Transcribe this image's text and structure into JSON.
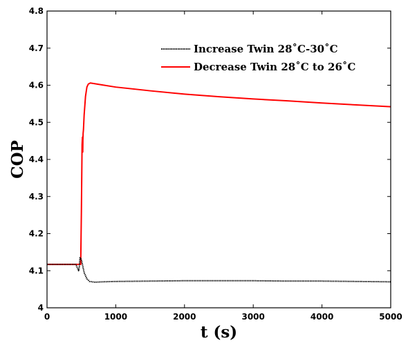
{
  "chart_data": {
    "type": "line",
    "title": "",
    "xlabel": "t (s)",
    "ylabel": "COP",
    "xlim": [
      0,
      5000
    ],
    "ylim": [
      4.0,
      4.8
    ],
    "xticks": [
      0,
      1000,
      2000,
      3000,
      4000,
      5000
    ],
    "xtick_labels": [
      "0",
      "1000",
      "2000",
      "3000",
      "4000",
      "5000"
    ],
    "yticks": [
      4.0,
      4.1,
      4.2,
      4.3,
      4.4,
      4.5,
      4.6,
      4.7,
      4.8
    ],
    "ytick_labels": [
      "4",
      "4.1",
      "4.2",
      "4.3",
      "4.4",
      "4.5",
      "4.6",
      "4.7",
      "4.8"
    ],
    "grid": false,
    "legend_position": "top-right",
    "series": [
      {
        "name": "Increase Twin 28˚C-30˚C",
        "color": "#000000",
        "style": "dotted",
        "x": [
          0,
          300,
          420,
          440,
          460,
          470,
          480,
          500,
          540,
          580,
          620,
          700,
          800,
          1000,
          1500,
          2000,
          2500,
          3000,
          3500,
          4000,
          4500,
          5000
        ],
        "y": [
          4.117,
          4.117,
          4.117,
          4.108,
          4.1,
          4.11,
          4.135,
          4.13,
          4.095,
          4.078,
          4.071,
          4.069,
          4.07,
          4.071,
          4.072,
          4.073,
          4.073,
          4.073,
          4.072,
          4.072,
          4.071,
          4.07
        ]
      },
      {
        "name": "Decrease Twin 28˚C to 26˚C",
        "color": "#ff0000",
        "style": "solid",
        "x": [
          0,
          300,
          490,
          500,
          510,
          515,
          520,
          522,
          525,
          530,
          540,
          560,
          580,
          600,
          630,
          700,
          800,
          1000,
          1500,
          2000,
          2500,
          3000,
          3500,
          4000,
          4500,
          5000
        ],
        "y": [
          4.117,
          4.117,
          4.117,
          4.26,
          4.44,
          4.46,
          4.42,
          4.45,
          4.47,
          4.48,
          4.52,
          4.57,
          4.595,
          4.603,
          4.606,
          4.604,
          4.601,
          4.595,
          4.585,
          4.576,
          4.569,
          4.563,
          4.558,
          4.552,
          4.547,
          4.542
        ]
      }
    ]
  }
}
